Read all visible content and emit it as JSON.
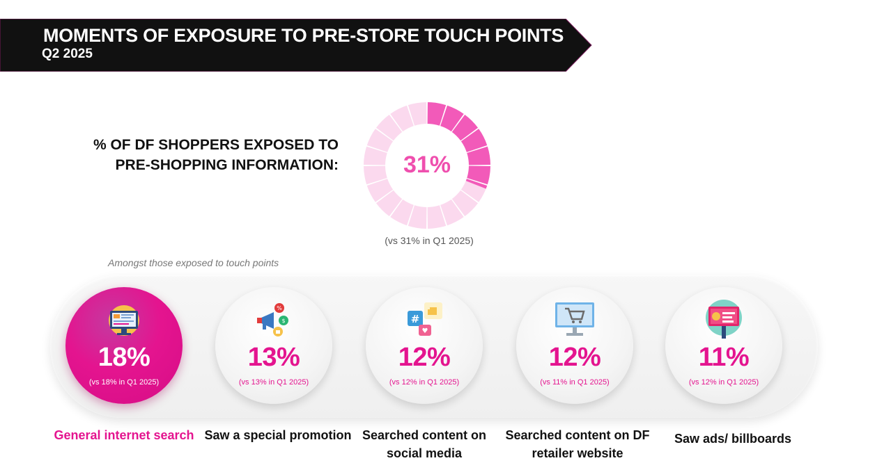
{
  "header": {
    "title": "MOMENTS OF EXPOSURE TO PRE-STORE TOUCH POINTS",
    "subtitle": "Q2 2025"
  },
  "headline": {
    "question": "% OF DF SHOPPERS EXPOSED TO PRE-SHOPPING INFORMATION:",
    "value": "31%",
    "value_fraction": 0.31,
    "compare": "(vs 31% in Q1 2025)"
  },
  "note": "Amongst those exposed to touch points",
  "touch_points": [
    {
      "icon": "computer-icon",
      "pct": "18%",
      "compare": "(vs 18% in Q1 2025)",
      "label": "General internet search",
      "highlighted": true
    },
    {
      "icon": "megaphone-icon",
      "pct": "13%",
      "compare": "(vs 13% in Q1 2025)",
      "label": "Saw a special promotion",
      "highlighted": false
    },
    {
      "icon": "social-media-icon",
      "pct": "12%",
      "compare": "(vs 12% in Q1 2025)",
      "label": "Searched content on social media",
      "highlighted": false
    },
    {
      "icon": "shopping-cart-monitor-icon",
      "pct": "12%",
      "compare": "(vs 11% in Q1 2025)",
      "label": "Searched content on DF retailer website",
      "highlighted": false
    },
    {
      "icon": "billboard-icon",
      "pct": "11%",
      "compare": "(vs 12% in Q1 2025)",
      "label": "Saw ads/ billboards",
      "highlighted": false
    }
  ],
  "colors": {
    "accent": "#e4148f",
    "donut_active": "#f25ab9",
    "donut_inactive": "#fbd9ee",
    "banner": "#111111"
  }
}
